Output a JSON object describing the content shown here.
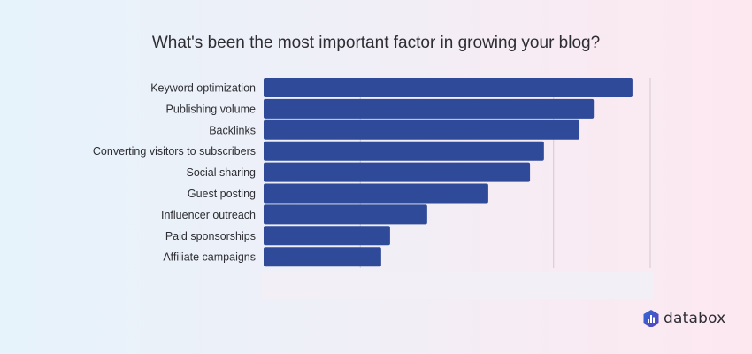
{
  "chart_data": {
    "type": "bar",
    "orientation": "horizontal",
    "title": "What's been the most important factor in growing your blog?",
    "categories": [
      "Keyword optimization",
      "Publishing volume",
      "Backlinks",
      "Converting visitors to subscribers",
      "Social sharing",
      "Guest posting",
      "Influencer outreach",
      "Paid sponsorships",
      "Affiliate campaigns"
    ],
    "values": [
      95.4,
      85.4,
      81.7,
      72.5,
      68.9,
      58.1,
      42.3,
      32.7,
      30.4
    ],
    "xlim": [
      0,
      100
    ],
    "grid": true,
    "gridlines": [
      25,
      50,
      75,
      100
    ],
    "bar_color": "#2e4a98",
    "grid_color": "#cfc9d3"
  },
  "brand": {
    "name": "databox",
    "colors": [
      "#2f6bd6",
      "#5a3fb8"
    ]
  }
}
